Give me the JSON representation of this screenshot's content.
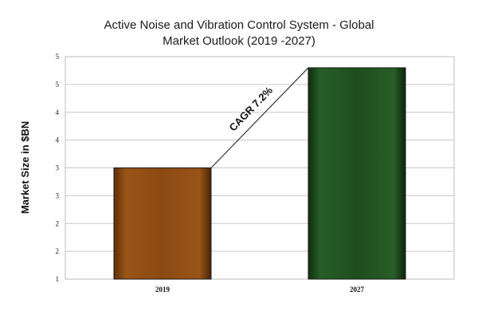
{
  "chart_data": {
    "type": "bar",
    "title_lines": [
      "Active Noise and Vibration Control System - Global",
      "Market Outlook  (2019 -2027)"
    ],
    "xlabel": "",
    "ylabel": "Market Size in $BN",
    "categories": [
      "2019",
      "2027"
    ],
    "values": [
      3.0,
      4.8
    ],
    "bar_colors": [
      "#8b4a12",
      "#1e4d1e"
    ],
    "y_tick_values": [
      1,
      1.5,
      2,
      2.5,
      3,
      3.5,
      4,
      4.5,
      5
    ],
    "y_tick_labels": [
      "1",
      "2",
      "2",
      "3",
      "3",
      "4",
      "4",
      "5",
      "5"
    ],
    "ylim": [
      1,
      5
    ],
    "grid": true,
    "annotation": "CAGR 7.2%"
  }
}
